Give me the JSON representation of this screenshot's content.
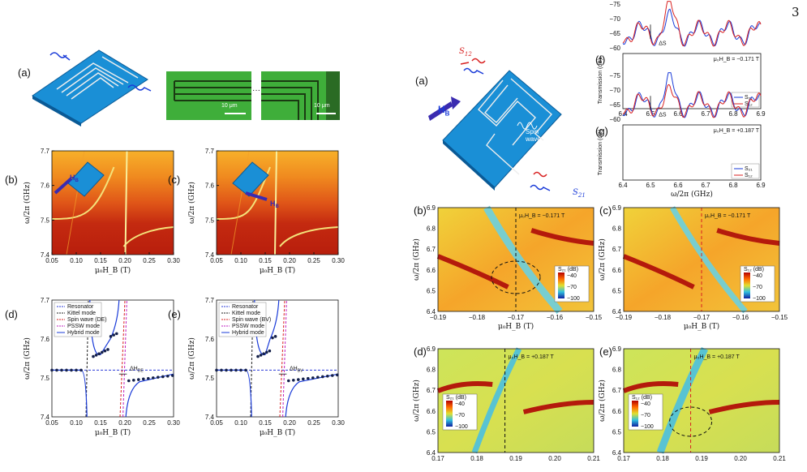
{
  "page_number": "3",
  "left": {
    "panel_a_label": "(a)",
    "scalebar_1": "10 μm",
    "scalebar_2": "10 μm",
    "ellipsis": "···",
    "panels_bc": [
      {
        "label": "(b)",
        "field_arrow": "H",
        "field_sub": "B"
      },
      {
        "label": "(c)",
        "field_arrow": "H",
        "field_sub": "B"
      }
    ],
    "ylabel": "ω/2π (GHz)",
    "xlabel": "μ₀H_B  (T)",
    "x_ticks": [
      "0.05",
      "0.10",
      "0.15",
      "0.20",
      "0.25",
      "0.30"
    ],
    "y_ticks": [
      "7.4",
      "7.5",
      "7.6",
      "7.7"
    ],
    "panels_de": [
      {
        "label": "(d)",
        "legend": [
          "Resonator",
          "Kittel mode",
          "Spin wave (DE)",
          "PSSW mode",
          "Hybrid mode"
        ],
        "delta": "ΔH",
        "delta_sub": "DE"
      },
      {
        "label": "(e)",
        "legend": [
          "Resonator",
          "Kittel mode",
          "Spin wave (BV)",
          "PSSW mode",
          "Hybrid mode"
        ],
        "delta": "ΔH",
        "delta_sub": "BV"
      }
    ]
  },
  "right": {
    "panel_a_label": "(a)",
    "s12": "S",
    "s12_sub": "12",
    "s21": "S",
    "s21_sub": "21",
    "hb": "H",
    "hb_sub": "B",
    "spin_wave": "Spin wave",
    "transmission_panels": [
      {
        "label": "(f)",
        "field": "μ₀H_B = −0.171 T",
        "delta": "ΔS",
        "legend": [
          "S₂₁",
          "S₁₂"
        ]
      },
      {
        "label": "(g)",
        "field": "μ₀H_B = +0.187 T",
        "delta": "ΔS",
        "legend": [
          "S₂₁",
          "S₁₂"
        ]
      }
    ],
    "trans_ylabel": "Transmission (dB)",
    "trans_xlabel": "ω/2π (GHz)",
    "trans_x_ticks": [
      "6.4",
      "6.5",
      "6.6",
      "6.7",
      "6.8",
      "6.9"
    ],
    "trans_y_ticks": [
      "−60",
      "−65",
      "−70",
      "−75"
    ],
    "maps": [
      {
        "label": "(b)",
        "field": "μ₀H_B = −0.171 T",
        "cbar": "S₂₁ (dB)",
        "x_ticks": [
          "−0.19",
          "−0.18",
          "−0.17",
          "−0.16",
          "−0.15"
        ]
      },
      {
        "label": "(c)",
        "field": "μ₀H_B = −0.171 T",
        "cbar": "S₁₂ (dB)",
        "x_ticks": [
          "−0.19",
          "−0.18",
          "−0.17",
          "−0.16",
          "−0.15"
        ]
      },
      {
        "label": "(d)",
        "field": "μ₀H_B = +0.187 T",
        "cbar": "S₂₁ (dB)",
        "x_ticks": [
          "0.17",
          "0.18",
          "0.19",
          "0.20",
          "0.21"
        ]
      },
      {
        "label": "(e)",
        "field": "μ₀H_B = +0.187 T",
        "cbar": "S₁₂ (dB)",
        "x_ticks": [
          "0.17",
          "0.18",
          "0.19",
          "0.20",
          "0.21"
        ]
      }
    ],
    "map_y_ticks": [
      "6.4",
      "6.5",
      "6.6",
      "6.7",
      "6.8",
      "6.9"
    ],
    "map_ylabel": "ω/2π (GHz)",
    "map_xlabel": "μ₀H_B  (T)",
    "cbar_ticks": [
      "−40",
      "−70",
      "−100"
    ]
  }
}
